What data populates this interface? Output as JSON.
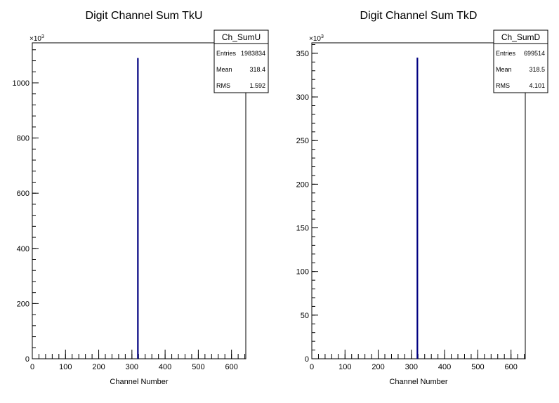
{
  "chart_data": [
    {
      "type": "bar",
      "title": "Digit Channel Sum TkU",
      "xlabel": "Channel Number",
      "ylabel": "",
      "xlim": [
        0,
        643
      ],
      "ylim": [
        0,
        1145
      ],
      "y_multiplier": "×10",
      "y_multiplier_exp": "3",
      "xticks": [
        "0",
        "100",
        "200",
        "300",
        "400",
        "500",
        "600"
      ],
      "yticks": [
        "0",
        "200",
        "400",
        "600",
        "800",
        "1000"
      ],
      "series_color": "#000080",
      "bins": [
        {
          "x": 318,
          "y": 1090
        }
      ],
      "stats": {
        "name": "Ch_SumU",
        "rows": [
          {
            "label": "Entries",
            "value": "1983834"
          },
          {
            "label": "Mean",
            "value": "318.4"
          },
          {
            "label": "RMS",
            "value": "1.592"
          }
        ]
      }
    },
    {
      "type": "bar",
      "title": "Digit Channel Sum TkD",
      "xlabel": "Channel Number",
      "ylabel": "",
      "xlim": [
        0,
        643
      ],
      "ylim": [
        0,
        362
      ],
      "y_multiplier": "×10",
      "y_multiplier_exp": "3",
      "xticks": [
        "0",
        "100",
        "200",
        "300",
        "400",
        "500",
        "600"
      ],
      "yticks": [
        "0",
        "50",
        "100",
        "150",
        "200",
        "250",
        "300",
        "350"
      ],
      "series_color": "#000080",
      "bins": [
        {
          "x": 318,
          "y": 345
        }
      ],
      "stats": {
        "name": "Ch_SumD",
        "rows": [
          {
            "label": "Entries",
            "value": "699514"
          },
          {
            "label": "Mean",
            "value": "318.5"
          },
          {
            "label": "RMS",
            "value": "4.101"
          }
        ]
      }
    }
  ]
}
